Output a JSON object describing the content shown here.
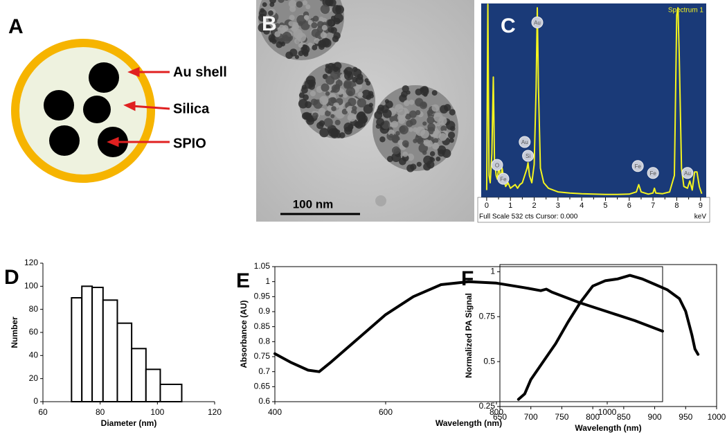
{
  "panel_a": {
    "label": "A",
    "labels": [
      "Au shell",
      "Silica",
      "SPIO"
    ]
  },
  "panel_b": {
    "label": "B",
    "scale_bar": "100 nm"
  },
  "chart_data": [
    {
      "type": "spectrum",
      "panel_label": "C",
      "title": "Spectrum 1",
      "footer": "Full Scale 532 cts Cursor: 0.000",
      "x_unit": "keV",
      "x": [
        0,
        0.05,
        0.1,
        0.15,
        0.22,
        0.28,
        0.33,
        0.4,
        0.45,
        0.52,
        0.58,
        0.65,
        0.72,
        0.8,
        0.9,
        1.0,
        1.1,
        1.2,
        1.3,
        1.4,
        1.5,
        1.6,
        1.7,
        1.74,
        1.8,
        1.9,
        2.0,
        2.08,
        2.13,
        2.18,
        2.26,
        2.4,
        2.6,
        3,
        3.5,
        4,
        4.5,
        5,
        5.5,
        6,
        6.3,
        6.4,
        6.5,
        6.8,
        7.0,
        7.06,
        7.12,
        7.4,
        7.7,
        7.9,
        8.0,
        8.05,
        8.1,
        8.2,
        8.3,
        8.45,
        8.55,
        8.65,
        8.75,
        8.85,
        8.95,
        9.05
      ],
      "series": [
        {
          "color": "#f5f51e",
          "values": [
            20,
            530,
            60,
            40,
            120,
            330,
            100,
            60,
            50,
            90,
            45,
            80,
            50,
            30,
            40,
            25,
            30,
            35,
            25,
            35,
            40,
            60,
            80,
            95,
            60,
            40,
            90,
            300,
            520,
            300,
            80,
            40,
            25,
            15,
            12,
            10,
            9,
            8,
            8,
            9,
            15,
            35,
            15,
            9,
            12,
            25,
            12,
            10,
            15,
            60,
            500,
            520,
            400,
            80,
            30,
            25,
            45,
            20,
            70,
            70,
            30,
            10
          ]
        }
      ],
      "peak_labels": [
        {
          "label": "O",
          "x": 0.44,
          "y": 89
        },
        {
          "label": "Fe",
          "x": 0.7,
          "y": 51
        },
        {
          "label": "Au",
          "x": 2.13,
          "y": 480
        },
        {
          "label": "Au",
          "x": 1.6,
          "y": 152
        },
        {
          "label": "Si",
          "x": 1.74,
          "y": 114
        },
        {
          "label": "Fe",
          "x": 6.36,
          "y": 86
        },
        {
          "label": "Fe",
          "x": 7.0,
          "y": 67
        },
        {
          "label": "Au",
          "x": 8.45,
          "y": 67
        }
      ],
      "xlim": [
        -0.23,
        9.24
      ],
      "ylim": [
        0,
        532
      ],
      "xticks": [
        0,
        1,
        2,
        3,
        4,
        5,
        6,
        7,
        8,
        9
      ],
      "background": "#1a3a78"
    },
    {
      "type": "histogram",
      "panel_label": "D",
      "x_label": "Diameter (nm)",
      "y_label": "Number",
      "bins": [
        70,
        73.6,
        77.2,
        81,
        86,
        91,
        96,
        101,
        108.5
      ],
      "values": [
        90,
        100,
        99,
        88,
        68,
        46,
        28,
        15
      ],
      "xlim": [
        60,
        120
      ],
      "ylim": [
        0,
        120
      ],
      "xticks": [
        60,
        80,
        100,
        120
      ],
      "yticks": [
        0,
        20,
        40,
        60,
        80,
        100,
        120
      ],
      "color": "#ffffff"
    },
    {
      "type": "line",
      "panel_label": "E",
      "x_label": "Wavelength (nm)",
      "y_label": "Absorbance (AU)",
      "x": [
        400,
        430,
        460,
        480,
        500,
        550,
        600,
        650,
        700,
        750,
        800,
        850,
        880,
        890,
        900,
        950,
        1000,
        1050,
        1100
      ],
      "series": [
        {
          "color": "#000000",
          "values": [
            0.76,
            0.73,
            0.705,
            0.7,
            0.73,
            0.81,
            0.89,
            0.95,
            0.99,
            1.0,
            0.995,
            0.98,
            0.97,
            0.975,
            0.965,
            0.93,
            0.9,
            0.87,
            0.835
          ]
        }
      ],
      "xlim": [
        400,
        1100
      ],
      "ylim": [
        0.6,
        1.05
      ],
      "xticks": [
        400,
        600,
        800,
        1000
      ],
      "yticks": [
        0.6,
        0.65,
        0.7,
        0.75,
        0.8,
        0.85,
        0.9,
        0.95,
        1,
        1.05
      ]
    },
    {
      "type": "line",
      "panel_label": "F",
      "x_label": "Wavelength (nm)",
      "y_label": "Normalized PA Signal",
      "x": [
        680,
        690,
        700,
        720,
        740,
        760,
        780,
        800,
        820,
        840,
        860,
        880,
        900,
        920,
        940,
        950,
        960,
        965,
        970
      ],
      "series": [
        {
          "color": "#000000",
          "values": [
            0.29,
            0.32,
            0.4,
            0.5,
            0.6,
            0.72,
            0.83,
            0.92,
            0.95,
            0.96,
            0.98,
            0.96,
            0.93,
            0.9,
            0.85,
            0.78,
            0.65,
            0.57,
            0.54
          ]
        }
      ],
      "xlim": [
        650,
        1000
      ],
      "ylim": [
        0.25,
        1.04
      ],
      "xticks": [
        650,
        700,
        750,
        800,
        850,
        900,
        950,
        1000
      ],
      "yticks": [
        0.25,
        0.5,
        0.75,
        1
      ]
    }
  ]
}
